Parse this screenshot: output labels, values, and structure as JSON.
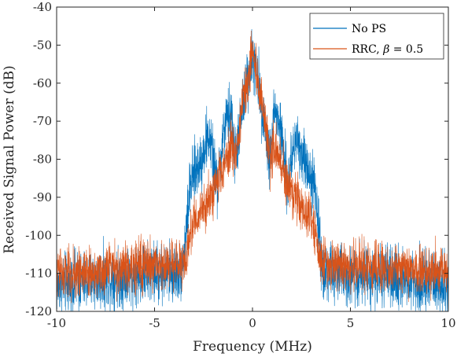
{
  "chart_data": {
    "type": "line",
    "xlabel": "Frequency (MHz)",
    "ylabel": "Received Signal Power (dB)",
    "xlim": [
      -10,
      10
    ],
    "ylim": [
      -120,
      -40
    ],
    "xticks": [
      -10,
      -5,
      0,
      5,
      10
    ],
    "xtick_labels": [
      "-10",
      "-5",
      "0",
      "5",
      "10"
    ],
    "yticks": [
      -120,
      -110,
      -100,
      -90,
      -80,
      -70,
      -60,
      -50,
      -40
    ],
    "ytick_labels": [
      "-120",
      "-110",
      "-100",
      "-90",
      "-80",
      "-70",
      "-60",
      "-50",
      "-40"
    ],
    "grid": false,
    "legend_position": "top-right",
    "series": [
      {
        "name": "No PS",
        "color": "#0072BD",
        "envelope": {
          "x": [
            -10,
            -5,
            -4,
            -3.6,
            -3.4,
            -3.2,
            -3.0,
            -2.6,
            -2.4,
            -2.2,
            -2.0,
            -1.8,
            -1.5,
            -1.3,
            -1.1,
            -0.9,
            -0.6,
            -0.3,
            0,
            0.3,
            0.6,
            0.9,
            1.1,
            1.3,
            1.5,
            1.8,
            2.0,
            2.2,
            2.4,
            2.6,
            3.0,
            3.2,
            3.4,
            3.6,
            4,
            5,
            10
          ],
          "y": [
            -113,
            -110,
            -110,
            -109,
            -100,
            -88,
            -84,
            -80,
            -76,
            -74,
            -80,
            -88,
            -74,
            -70,
            -67,
            -80,
            -70,
            -60,
            -53,
            -60,
            -70,
            -80,
            -67,
            -70,
            -74,
            -88,
            -80,
            -74,
            -76,
            -80,
            -84,
            -88,
            -100,
            -109,
            -110,
            -110,
            -113
          ]
        },
        "spread_db": 6
      },
      {
        "name": "RRC, β = 0.5",
        "color": "#D95319",
        "envelope": {
          "x": [
            -10,
            -5,
            -4,
            -3.4,
            -3.2,
            -3.0,
            -2.6,
            -2.2,
            -1.8,
            -1.4,
            -1.1,
            -0.9,
            -0.6,
            -0.3,
            0,
            0.3,
            0.6,
            0.9,
            1.1,
            1.4,
            1.8,
            2.2,
            2.6,
            3.0,
            3.2,
            3.4,
            4,
            5,
            10
          ],
          "y": [
            -110,
            -108,
            -108,
            -106,
            -100,
            -96,
            -93,
            -90,
            -86,
            -80,
            -76,
            -80,
            -68,
            -60,
            -52,
            -60,
            -68,
            -80,
            -76,
            -80,
            -86,
            -90,
            -93,
            -96,
            -100,
            -106,
            -108,
            -108,
            -110
          ]
        },
        "spread_db": 5
      }
    ]
  },
  "legend": {
    "items": [
      {
        "label_text": "No PS",
        "color": "#0072BD"
      },
      {
        "label_prefix": "RRC, ",
        "label_beta": "β",
        "label_value": " = 0.5",
        "color": "#D95319"
      }
    ]
  }
}
